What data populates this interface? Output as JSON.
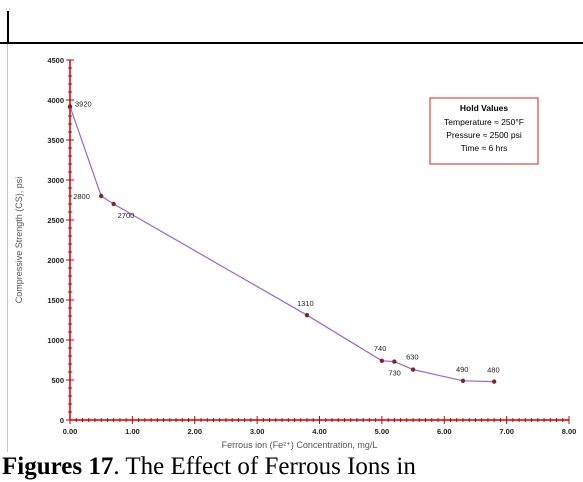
{
  "chart_data": {
    "type": "line",
    "xlabel": "Ferrous ion (Fe²⁺) Concentration,  mg/L",
    "ylabel": "Compressive Strength (CS), psi",
    "xlim": [
      0,
      8
    ],
    "ylim": [
      0,
      4500
    ],
    "x_ticks": [
      "0.00",
      "1.00",
      "2.00",
      "3.00",
      "4.00",
      "5.00",
      "6.00",
      "7.00",
      "8.00"
    ],
    "y_ticks": [
      "0",
      "500",
      "1000",
      "1500",
      "2000",
      "2500",
      "3000",
      "3500",
      "4000",
      "4500"
    ],
    "grid": false,
    "series": [
      {
        "color": "#9966cc",
        "marker_color": "#7a2a20",
        "points": [
          {
            "x": 0.0,
            "y": 3920,
            "label": "3920"
          },
          {
            "x": 0.5,
            "y": 2800,
            "label": "2800"
          },
          {
            "x": 0.7,
            "y": 2700,
            "label": "2700"
          },
          {
            "x": 3.8,
            "y": 1310,
            "label": "1310"
          },
          {
            "x": 5.0,
            "y": 740,
            "label": "740"
          },
          {
            "x": 5.2,
            "y": 730,
            "label": "730"
          },
          {
            "x": 5.5,
            "y": 630,
            "label": "630"
          },
          {
            "x": 6.3,
            "y": 490,
            "label": "490"
          },
          {
            "x": 6.8,
            "y": 480,
            "label": "480"
          }
        ]
      }
    ],
    "annotation": {
      "title": "Hold Values",
      "lines": [
        "Temperature ≈ 250°F",
        "Pressure ≈ 2500 psi",
        "Time ≈ 6 hrs"
      ],
      "border_color": "#cc2222"
    },
    "axis_color": "#cc0000"
  },
  "caption": {
    "label": "Figures 17",
    "text": ". The Effect of Ferrous Ions in"
  }
}
